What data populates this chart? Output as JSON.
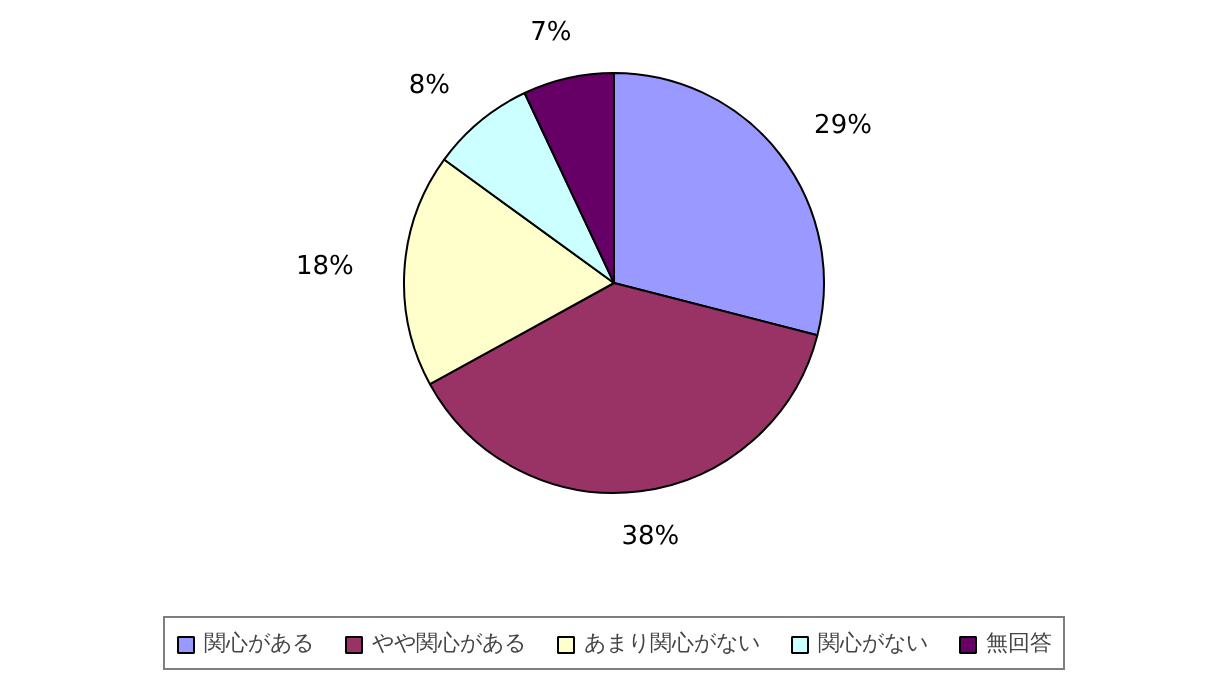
{
  "chart_data": {
    "type": "pie",
    "categories": [
      "関心がある",
      "やや関心がある",
      "あまり関心がない",
      "関心がない",
      "無回答"
    ],
    "values": [
      29,
      38,
      18,
      8,
      7
    ],
    "colors": [
      "#9999ff",
      "#993366",
      "#ffffcc",
      "#ccffff",
      "#660066"
    ],
    "value_labels": [
      "29%",
      "38%",
      "18%",
      "8%",
      "7%"
    ],
    "legend": "bottom"
  }
}
